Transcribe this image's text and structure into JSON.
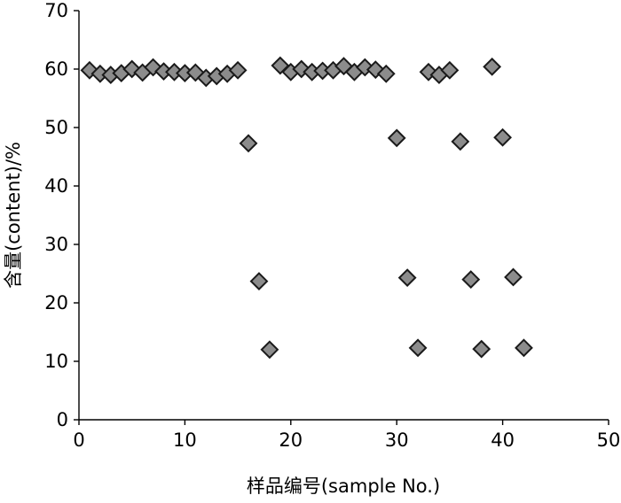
{
  "chart_data": {
    "type": "scatter",
    "title": "",
    "xlabel": "样品编号(sample No.)",
    "ylabel": "含量(content)/%",
    "xlim": [
      0,
      50
    ],
    "ylim": [
      0,
      70
    ],
    "xticks": [
      "0",
      "10",
      "20",
      "30",
      "40",
      "50"
    ],
    "yticks": [
      "0",
      "10",
      "20",
      "30",
      "40",
      "50",
      "60",
      "70"
    ],
    "grid": false,
    "legend": "none",
    "marker": "diamond",
    "marker_color": "#8c8c8c",
    "series": [
      {
        "points": [
          [
            1,
            59.8
          ],
          [
            2,
            59.2
          ],
          [
            3,
            59.0
          ],
          [
            4,
            59.3
          ],
          [
            5,
            60.0
          ],
          [
            6,
            59.4
          ],
          [
            7,
            60.3
          ],
          [
            8,
            59.6
          ],
          [
            9,
            59.5
          ],
          [
            10,
            59.3
          ],
          [
            11,
            59.4
          ],
          [
            12,
            58.5
          ],
          [
            13,
            58.8
          ],
          [
            14,
            59.2
          ],
          [
            15,
            59.8
          ],
          [
            16,
            47.3
          ],
          [
            17,
            23.7
          ],
          [
            18,
            12.0
          ],
          [
            19,
            60.6
          ],
          [
            20,
            59.5
          ],
          [
            21,
            60.0
          ],
          [
            22,
            59.5
          ],
          [
            23,
            59.7
          ],
          [
            24,
            59.8
          ],
          [
            25,
            60.5
          ],
          [
            26,
            59.5
          ],
          [
            27,
            60.3
          ],
          [
            28,
            59.9
          ],
          [
            29,
            59.2
          ],
          [
            30,
            48.2
          ],
          [
            31,
            24.3
          ],
          [
            32,
            12.3
          ],
          [
            33,
            59.5
          ],
          [
            34,
            59.0
          ],
          [
            35,
            59.8
          ],
          [
            36,
            47.6
          ],
          [
            37,
            24.0
          ],
          [
            38,
            12.1
          ],
          [
            39,
            60.4
          ],
          [
            40,
            48.3
          ],
          [
            41,
            24.4
          ],
          [
            42,
            12.3
          ]
        ]
      }
    ]
  }
}
